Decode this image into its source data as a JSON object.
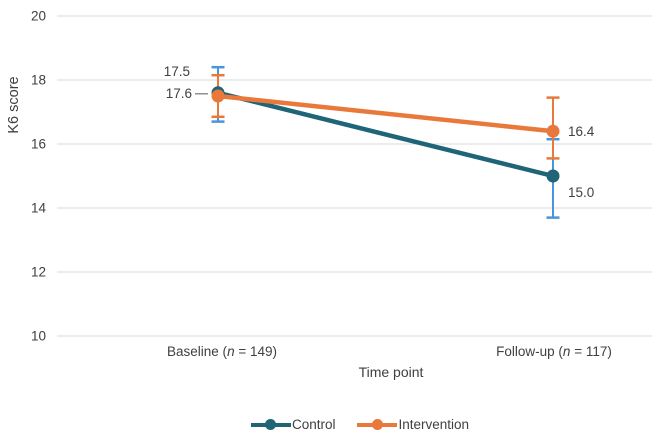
{
  "chart_data": {
    "type": "line",
    "title": "",
    "xlabel": "Time point",
    "ylabel": "K6 score",
    "ylim": [
      10,
      20
    ],
    "yticks": [
      20,
      18,
      16,
      14,
      12,
      10
    ],
    "grid": true,
    "legend_position": "bottom-center",
    "text_color": "#404040",
    "gridline_color": "#d9d9d9",
    "leader_line_color": "#808080",
    "categories": [
      {
        "pre": "Baseline (",
        "var": "n",
        "post": " = 149)"
      },
      {
        "pre": "Follow-up (",
        "var": "n",
        "post": " = 117)"
      }
    ],
    "series": [
      {
        "name": "Control",
        "color": "#1f6477",
        "error_color": "#4a94d9",
        "values": [
          17.6,
          15.0
        ],
        "ci": [
          [
            16.7,
            18.4
          ],
          [
            13.7,
            16.15
          ]
        ],
        "value_labels": [
          {
            "text": "17.6",
            "placement": "left-mid",
            "leader": true
          },
          {
            "text": "15.0",
            "placement": "right-below",
            "leader": false
          }
        ]
      },
      {
        "name": "Intervention",
        "color": "#e8793a",
        "error_color": "#e8793a",
        "values": [
          17.5,
          16.4
        ],
        "ci": [
          [
            16.85,
            18.15
          ],
          [
            15.55,
            17.45
          ]
        ],
        "value_labels": [
          {
            "text": "17.5",
            "placement": "left-above",
            "leader": false
          },
          {
            "text": "16.4",
            "placement": "right-mid",
            "leader": false
          }
        ]
      }
    ]
  }
}
